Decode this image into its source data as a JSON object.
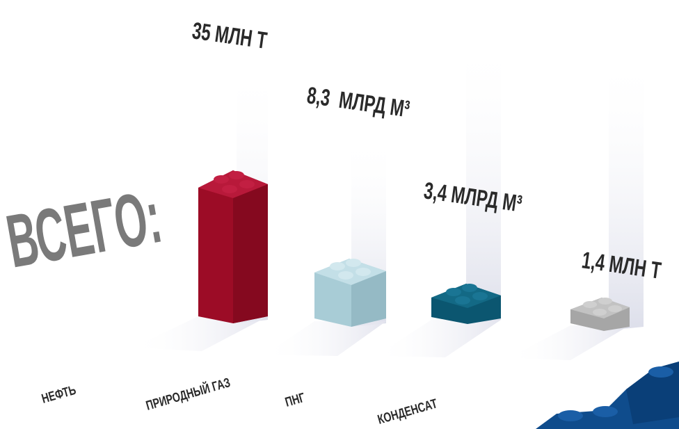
{
  "title": "ВСЕГО:",
  "items": [
    {
      "amount": "35 МЛН Т",
      "label": "НЕФТЬ"
    },
    {
      "amount": "8,3  МЛРД М³",
      "label": "ПРИРОДНЫЙ ГАЗ"
    },
    {
      "amount": "3,4 МЛРД М³",
      "label": "ПНГ"
    },
    {
      "amount": "1,4 МЛН Т",
      "label": "КОНДЕНСАТ"
    }
  ]
}
